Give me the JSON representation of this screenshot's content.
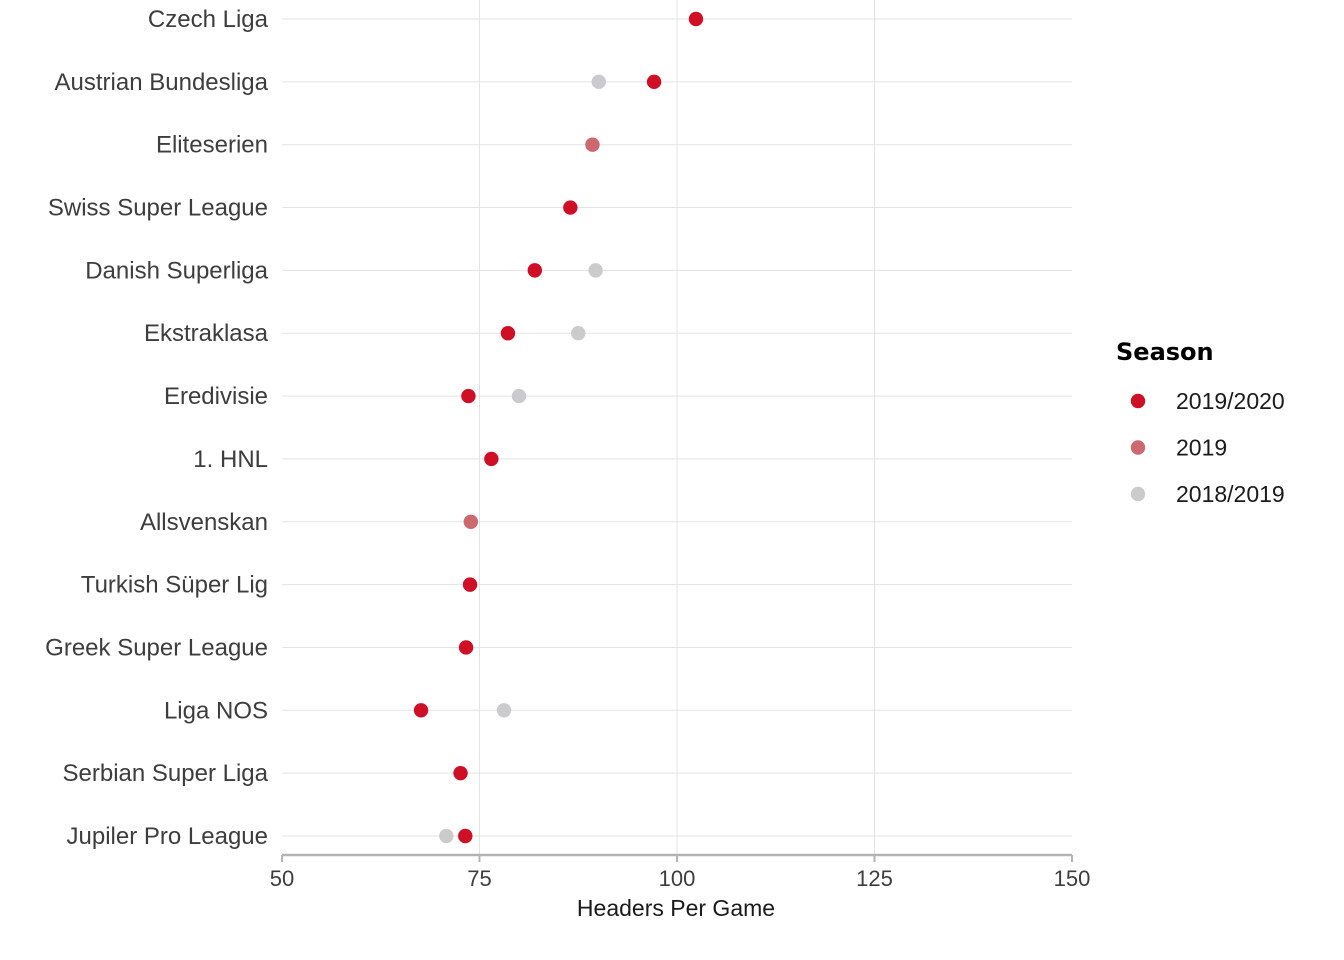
{
  "chart_data": {
    "type": "scatter",
    "title": "",
    "xlabel": "Headers Per Game",
    "ylabel": "",
    "xlim": [
      50,
      150
    ],
    "x_ticks": [
      50,
      75,
      100,
      125,
      150
    ],
    "x_tick_labels": [
      "50",
      "75",
      "100",
      "125",
      "150"
    ],
    "grid": true,
    "legend_position": "right",
    "legend_title": "Season",
    "categories": [
      "Czech Liga",
      "Austrian Bundesliga",
      "Eliteserien",
      "Swiss Super League",
      "Danish Superliga",
      "Ekstraklasa",
      "Eredivisie",
      "1. HNL",
      "Allsvenskan",
      "Turkish Süper Lig",
      "Greek Super League",
      "Liga NOS",
      "Serbian Super Liga",
      "Jupiler Pro League"
    ],
    "series": [
      {
        "name": "2018/2019",
        "color": "#cbcbcd",
        "values": [
          null,
          90.1,
          null,
          null,
          89.7,
          87.5,
          80.0,
          null,
          null,
          null,
          null,
          78.1,
          null,
          70.8
        ]
      },
      {
        "name": "2019",
        "color": "#cc6870",
        "values": [
          null,
          null,
          89.3,
          null,
          null,
          null,
          null,
          null,
          73.9,
          null,
          null,
          null,
          null,
          null
        ]
      },
      {
        "name": "2019/2020",
        "color": "#ce0f25",
        "values": [
          102.4,
          97.1,
          null,
          86.5,
          82.0,
          78.6,
          73.6,
          76.5,
          null,
          73.8,
          73.3,
          67.6,
          72.6,
          73.2
        ]
      }
    ],
    "legend_order": [
      "2019/2020",
      "2019",
      "2018/2019"
    ]
  }
}
